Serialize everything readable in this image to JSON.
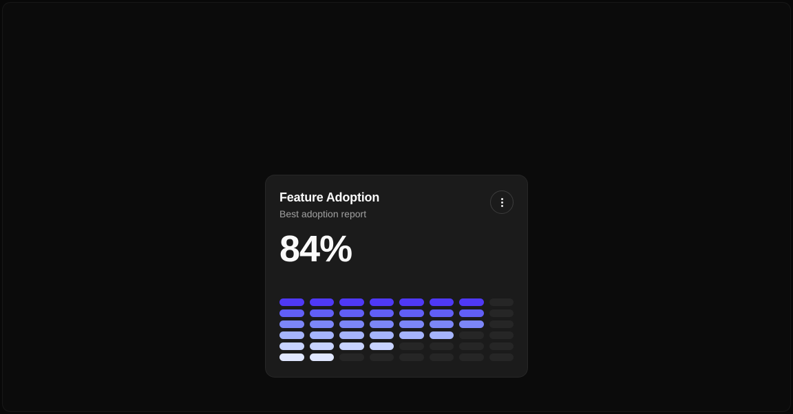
{
  "page": {
    "background": "#0b0b0b",
    "outer_background": "#080808"
  },
  "card": {
    "title": "Feature Adoption",
    "subtitle": "Best adoption report",
    "value": "84%",
    "background": "#1b1b1b",
    "title_color": "#fafafa",
    "subtitle_color": "#a1a1a1",
    "menu_icon": "kebab-menu-icon"
  },
  "chart_data": {
    "type": "heatmap",
    "title": "Feature Adoption",
    "subtitle": "Best adoption report",
    "value_label": "84%",
    "description": "Segmented pill grid, 8 columns x 6 rows; each row is one indigo shade, filled left-to-right, remaining cells empty dark gray",
    "columns": 8,
    "rows": 6,
    "legend": "none",
    "axes": "none",
    "empty_color": "#262626",
    "series": [
      {
        "row": 1,
        "filled": 7,
        "color": "#4f39f6"
      },
      {
        "row": 2,
        "filled": 7,
        "color": "#615ff6"
      },
      {
        "row": 3,
        "filled": 7,
        "color": "#7c86f8"
      },
      {
        "row": 4,
        "filled": 6,
        "color": "#a5b4fc"
      },
      {
        "row": 5,
        "filled": 4,
        "color": "#c7d2fe"
      },
      {
        "row": 6,
        "filled": 2,
        "color": "#e0e7ff"
      }
    ]
  }
}
